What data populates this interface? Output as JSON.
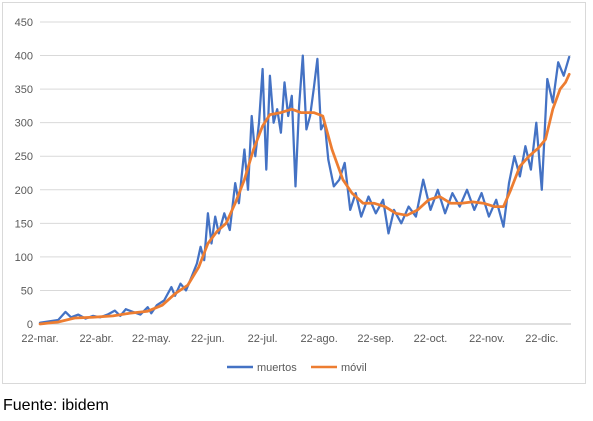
{
  "chart_data": {
    "type": "line",
    "ylim": [
      0,
      450
    ],
    "yticks": [
      0,
      50,
      100,
      150,
      200,
      250,
      300,
      350,
      400,
      450
    ],
    "xlim": [
      "2020-03-22",
      "2021-01-07"
    ],
    "xticks": [
      "22-mar.",
      "22-abr.",
      "22-may.",
      "22-jun.",
      "22-jul.",
      "22-ago.",
      "22-sep.",
      "22-oct.",
      "22-nov.",
      "22-dic."
    ],
    "grid": true,
    "legend": "bottom",
    "series": [
      {
        "name": "muertos",
        "color": "#4472c4",
        "points": [
          [
            "2020-03-22",
            2
          ],
          [
            "2020-03-27",
            4
          ],
          [
            "2020-04-01",
            6
          ],
          [
            "2020-04-05",
            18
          ],
          [
            "2020-04-08",
            10
          ],
          [
            "2020-04-12",
            14
          ],
          [
            "2020-04-16",
            8
          ],
          [
            "2020-04-20",
            12
          ],
          [
            "2020-04-24",
            10
          ],
          [
            "2020-04-28",
            14
          ],
          [
            "2020-05-02",
            20
          ],
          [
            "2020-05-05",
            12
          ],
          [
            "2020-05-08",
            22
          ],
          [
            "2020-05-12",
            18
          ],
          [
            "2020-05-16",
            14
          ],
          [
            "2020-05-20",
            25
          ],
          [
            "2020-05-22",
            16
          ],
          [
            "2020-05-25",
            28
          ],
          [
            "2020-05-29",
            35
          ],
          [
            "2020-06-02",
            55
          ],
          [
            "2020-06-04",
            42
          ],
          [
            "2020-06-07",
            60
          ],
          [
            "2020-06-10",
            50
          ],
          [
            "2020-06-13",
            70
          ],
          [
            "2020-06-16",
            90
          ],
          [
            "2020-06-18",
            115
          ],
          [
            "2020-06-20",
            95
          ],
          [
            "2020-06-22",
            165
          ],
          [
            "2020-06-24",
            120
          ],
          [
            "2020-06-26",
            160
          ],
          [
            "2020-06-28",
            135
          ],
          [
            "2020-07-01",
            165
          ],
          [
            "2020-07-04",
            140
          ],
          [
            "2020-07-07",
            210
          ],
          [
            "2020-07-09",
            180
          ],
          [
            "2020-07-12",
            260
          ],
          [
            "2020-07-14",
            200
          ],
          [
            "2020-07-16",
            310
          ],
          [
            "2020-07-18",
            250
          ],
          [
            "2020-07-20",
            300
          ],
          [
            "2020-07-22",
            380
          ],
          [
            "2020-07-24",
            230
          ],
          [
            "2020-07-26",
            370
          ],
          [
            "2020-07-28",
            300
          ],
          [
            "2020-07-30",
            320
          ],
          [
            "2020-08-01",
            285
          ],
          [
            "2020-08-03",
            360
          ],
          [
            "2020-08-05",
            310
          ],
          [
            "2020-08-07",
            340
          ],
          [
            "2020-08-09",
            205
          ],
          [
            "2020-08-11",
            325
          ],
          [
            "2020-08-13",
            400
          ],
          [
            "2020-08-15",
            290
          ],
          [
            "2020-08-17",
            310
          ],
          [
            "2020-08-19",
            350
          ],
          [
            "2020-08-21",
            395
          ],
          [
            "2020-08-23",
            290
          ],
          [
            "2020-08-25",
            300
          ],
          [
            "2020-08-27",
            245
          ],
          [
            "2020-08-30",
            205
          ],
          [
            "2020-09-02",
            215
          ],
          [
            "2020-09-05",
            240
          ],
          [
            "2020-09-08",
            170
          ],
          [
            "2020-09-11",
            195
          ],
          [
            "2020-09-14",
            160
          ],
          [
            "2020-09-18",
            190
          ],
          [
            "2020-09-22",
            165
          ],
          [
            "2020-09-26",
            185
          ],
          [
            "2020-09-29",
            135
          ],
          [
            "2020-10-02",
            170
          ],
          [
            "2020-10-06",
            150
          ],
          [
            "2020-10-10",
            175
          ],
          [
            "2020-10-14",
            160
          ],
          [
            "2020-10-18",
            215
          ],
          [
            "2020-10-22",
            170
          ],
          [
            "2020-10-26",
            200
          ],
          [
            "2020-10-30",
            165
          ],
          [
            "2020-11-03",
            195
          ],
          [
            "2020-11-07",
            175
          ],
          [
            "2020-11-11",
            200
          ],
          [
            "2020-11-15",
            170
          ],
          [
            "2020-11-19",
            195
          ],
          [
            "2020-11-23",
            160
          ],
          [
            "2020-11-27",
            185
          ],
          [
            "2020-12-01",
            145
          ],
          [
            "2020-12-04",
            210
          ],
          [
            "2020-12-07",
            250
          ],
          [
            "2020-12-10",
            220
          ],
          [
            "2020-12-13",
            265
          ],
          [
            "2020-12-16",
            230
          ],
          [
            "2020-12-19",
            300
          ],
          [
            "2020-12-22",
            200
          ],
          [
            "2020-12-25",
            365
          ],
          [
            "2020-12-28",
            330
          ],
          [
            "2020-12-31",
            390
          ],
          [
            "2021-01-03",
            370
          ],
          [
            "2021-01-06",
            398
          ]
        ]
      },
      {
        "name": "móvil",
        "color": "#ed7d31",
        "points": [
          [
            "2020-03-22",
            0
          ],
          [
            "2020-04-01",
            3
          ],
          [
            "2020-04-10",
            9
          ],
          [
            "2020-04-20",
            10
          ],
          [
            "2020-05-01",
            12
          ],
          [
            "2020-05-10",
            16
          ],
          [
            "2020-05-20",
            19
          ],
          [
            "2020-05-28",
            28
          ],
          [
            "2020-06-04",
            45
          ],
          [
            "2020-06-11",
            58
          ],
          [
            "2020-06-17",
            85
          ],
          [
            "2020-06-22",
            120
          ],
          [
            "2020-06-27",
            138
          ],
          [
            "2020-07-02",
            150
          ],
          [
            "2020-07-07",
            180
          ],
          [
            "2020-07-12",
            215
          ],
          [
            "2020-07-17",
            260
          ],
          [
            "2020-07-22",
            295
          ],
          [
            "2020-07-26",
            312
          ],
          [
            "2020-08-01",
            315
          ],
          [
            "2020-08-07",
            320
          ],
          [
            "2020-08-12",
            315
          ],
          [
            "2020-08-19",
            315
          ],
          [
            "2020-08-24",
            310
          ],
          [
            "2020-08-29",
            260
          ],
          [
            "2020-09-04",
            215
          ],
          [
            "2020-09-09",
            195
          ],
          [
            "2020-09-15",
            180
          ],
          [
            "2020-09-21",
            180
          ],
          [
            "2020-09-27",
            175
          ],
          [
            "2020-10-03",
            165
          ],
          [
            "2020-10-09",
            162
          ],
          [
            "2020-10-15",
            170
          ],
          [
            "2020-10-21",
            185
          ],
          [
            "2020-10-27",
            190
          ],
          [
            "2020-11-02",
            180
          ],
          [
            "2020-11-08",
            180
          ],
          [
            "2020-11-14",
            182
          ],
          [
            "2020-11-20",
            180
          ],
          [
            "2020-11-26",
            175
          ],
          [
            "2020-12-01",
            175
          ],
          [
            "2020-12-05",
            200
          ],
          [
            "2020-12-10",
            235
          ],
          [
            "2020-12-15",
            250
          ],
          [
            "2020-12-20",
            262
          ],
          [
            "2020-12-24",
            275
          ],
          [
            "2020-12-28",
            320
          ],
          [
            "2021-01-01",
            350
          ],
          [
            "2021-01-04",
            360
          ],
          [
            "2021-01-06",
            372
          ]
        ]
      }
    ]
  },
  "footer": {
    "source": "Fuente: ibidem"
  }
}
